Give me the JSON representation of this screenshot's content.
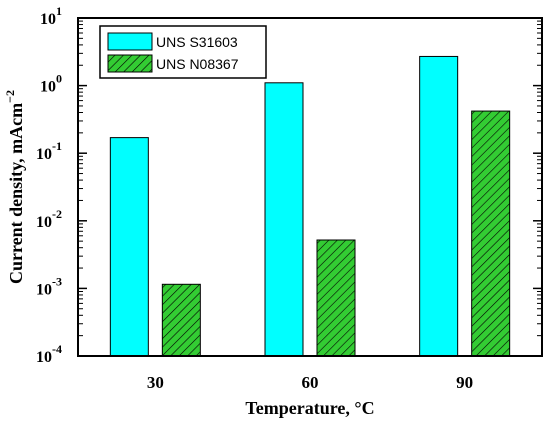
{
  "chart_data": {
    "type": "bar",
    "categories": [
      "30",
      "60",
      "90"
    ],
    "series": [
      {
        "name": "UNS S31603",
        "values": [
          0.17,
          1.1,
          2.7
        ],
        "color": "#00ffff",
        "pattern": "solid"
      },
      {
        "name": "UNS N08367",
        "values": [
          0.00115,
          0.0052,
          0.42
        ],
        "color": "#33cc33",
        "pattern": "hatch"
      }
    ],
    "xlabel": "Temperature, °C",
    "ylabel": "Current density, mAcm",
    "ylabel_superscript": "−2",
    "yscale": "log",
    "ylim": [
      0.0001,
      10
    ],
    "yticks": [
      {
        "base": "10",
        "exp": "-4"
      },
      {
        "base": "10",
        "exp": "-3"
      },
      {
        "base": "10",
        "exp": "-2"
      },
      {
        "base": "10",
        "exp": "-1"
      },
      {
        "base": "10",
        "exp": "0"
      },
      {
        "base": "10",
        "exp": "1"
      }
    ],
    "grid": false,
    "legend_position": "top-left"
  }
}
